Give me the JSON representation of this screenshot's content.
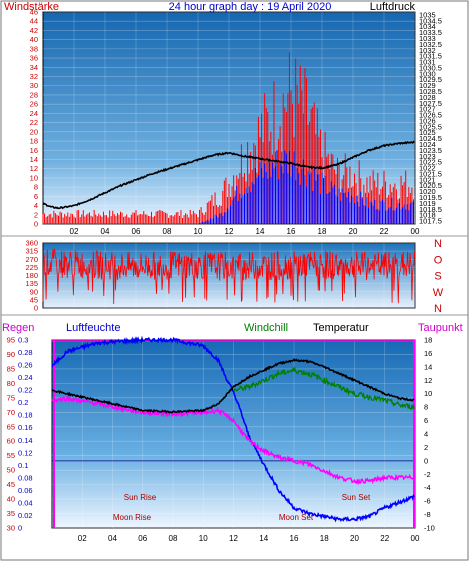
{
  "top": {
    "title": "24 hour graph day : 19 April 2020",
    "left_label": "Windstärke",
    "right_label": "Luftdruck",
    "left_axis": {
      "min": 0,
      "max": 46,
      "ticks": [
        0,
        2,
        4,
        6,
        8,
        10,
        12,
        14,
        16,
        18,
        20,
        22,
        24,
        26,
        28,
        30,
        32,
        34,
        36,
        38,
        40,
        42,
        44,
        46
      ]
    },
    "right_axis": {
      "min": 1017.25,
      "max": 1035.25,
      "ticks": [
        "1017.5",
        "1018",
        "1018.5",
        "1019",
        "1019.5",
        "1020",
        "1020.5",
        "1021",
        "1021.5",
        "1022",
        "1022.5",
        "1023",
        "1023.5",
        "1024",
        "1024.5",
        "1025",
        "1025.5",
        "1026",
        "1026.5",
        "1027",
        "1027.5",
        "1028",
        "1028.5",
        "1029",
        "1029.5",
        "1030",
        "1030.5",
        "1031",
        "1031.5",
        "1032",
        "1032.5",
        "1033",
        "1033.5",
        "1034",
        "1034.5",
        "1035"
      ]
    }
  },
  "mid": {
    "left_axis": {
      "min": 0,
      "max": 360,
      "ticks": [
        0,
        45,
        90,
        135,
        180,
        225,
        270,
        315,
        360
      ]
    },
    "compass": [
      "N",
      "W",
      "S",
      "O",
      "N"
    ]
  },
  "bottom": {
    "label_regen": "Regen",
    "label_luftfeuchte": "Luftfeuchte",
    "label_windchill": "Windchill",
    "label_temperatur": "Temperatur",
    "label_taupunkt": "Taupunkt",
    "humidity_axis": {
      "min": 30,
      "max": 95,
      "ticks": [
        30,
        35,
        40,
        45,
        50,
        55,
        60,
        65,
        70,
        75,
        80,
        85,
        90,
        95
      ]
    },
    "rain_axis": {
      "ticks": [
        "0",
        "0.02",
        "0.04",
        "0.06",
        "0.08",
        "0.1",
        "0.12",
        "0.14",
        "0.16",
        "0.18",
        "0.2",
        "0.22",
        "0.24",
        "0.26",
        "0.28",
        "0.3"
      ]
    },
    "temp_axis": {
      "min": -10,
      "max": 18,
      "ticks": [
        -10,
        -8,
        -6,
        -4,
        -2,
        0,
        2,
        4,
        6,
        8,
        10,
        12,
        14,
        16,
        18
      ]
    },
    "events": {
      "sun_rise": "Sun Rise",
      "sun_set": "Sun Set",
      "moon_rise": "Moon Rise",
      "moon_set": "Moon Set"
    }
  },
  "x_ticks": [
    "02",
    "04",
    "06",
    "08",
    "10",
    "12",
    "14",
    "16",
    "18",
    "20",
    "22",
    "00"
  ],
  "colors": {
    "wind_gust": "#ff0000",
    "wind_avg": "#0000ff",
    "pressure": "#000000",
    "direction": "#ff0000",
    "humidity": "#0000ff",
    "temperature": "#000000",
    "windchill": "#008000",
    "dewpoint": "#ff00ff",
    "panel_top": "#1a6fb8",
    "panel_bottom": "#e9f3ff"
  },
  "chart_data": [
    {
      "type": "line",
      "x_unit": "hour",
      "series": [
        {
          "values_pressure": [
            [
              0,
              1019.0
            ],
            [
              0.5,
              1018.7
            ],
            [
              1,
              1018.6
            ],
            [
              2,
              1018.8
            ],
            [
              3,
              1019.3
            ],
            [
              4,
              1019.9
            ],
            [
              5,
              1020.5
            ],
            [
              6,
              1021.0
            ],
            [
              7,
              1021.5
            ],
            [
              8,
              1021.9
            ],
            [
              9,
              1022.3
            ],
            [
              10,
              1022.7
            ],
            [
              11,
              1023.1
            ],
            [
              12,
              1023.3
            ],
            [
              13,
              1023.0
            ],
            [
              14,
              1022.8
            ],
            [
              15,
              1022.6
            ],
            [
              16,
              1022.4
            ],
            [
              17,
              1022.1
            ],
            [
              18,
              1022.0
            ],
            [
              19,
              1022.3
            ],
            [
              20,
              1022.9
            ],
            [
              21,
              1023.5
            ],
            [
              22,
              1023.9
            ],
            [
              23,
              1024.1
            ],
            [
              24,
              1024.2
            ]
          ]
        },
        {
          "values_gust": [
            [
              0,
              2
            ],
            [
              2,
              2
            ],
            [
              4,
              2
            ],
            [
              6,
              2
            ],
            [
              8,
              2
            ],
            [
              10,
              2
            ],
            [
              11.5,
              6
            ],
            [
              12,
              8
            ],
            [
              13,
              14
            ],
            [
              14,
              18
            ],
            [
              15,
              22
            ],
            [
              16,
              26
            ],
            [
              17,
              22
            ],
            [
              18,
              14
            ],
            [
              19,
              10
            ],
            [
              20,
              10
            ],
            [
              21,
              8
            ],
            [
              22,
              8
            ],
            [
              23,
              8
            ],
            [
              24,
              8
            ]
          ]
        },
        {
          "values_avg": [
            [
              0,
              0
            ],
            [
              2,
              0
            ],
            [
              4,
              0
            ],
            [
              6,
              0
            ],
            [
              8,
              0
            ],
            [
              10,
              0
            ],
            [
              11.5,
              2
            ],
            [
              12,
              4
            ],
            [
              13,
              8
            ],
            [
              14,
              10
            ],
            [
              15,
              12
            ],
            [
              16,
              13
            ],
            [
              17,
              11
            ],
            [
              18,
              8
            ],
            [
              19,
              6
            ],
            [
              20,
              6
            ],
            [
              21,
              4
            ],
            [
              22,
              4
            ],
            [
              23,
              4
            ],
            [
              24,
              4
            ]
          ]
        }
      ]
    },
    {
      "type": "line",
      "x_unit": "hour",
      "series": [
        {
          "values_direction": [
            [
              0,
              250
            ],
            [
              3,
              240
            ],
            [
              6,
              230
            ],
            [
              9,
              240
            ],
            [
              12,
              230
            ],
            [
              15,
              235
            ],
            [
              18,
              240
            ],
            [
              21,
              230
            ],
            [
              24,
              240
            ]
          ]
        }
      ]
    },
    {
      "type": "line",
      "x_unit": "hour",
      "series": [
        {
          "values_humidity": [
            [
              0,
              86
            ],
            [
              1,
              91
            ],
            [
              3,
              94
            ],
            [
              6,
              95
            ],
            [
              8,
              95
            ],
            [
              10,
              93
            ],
            [
              11,
              88
            ],
            [
              11.5,
              82
            ],
            [
              12,
              77
            ],
            [
              12.5,
              70
            ],
            [
              13,
              62
            ],
            [
              14,
              52
            ],
            [
              15,
              43
            ],
            [
              16,
              37
            ],
            [
              17,
              35
            ],
            [
              18,
              34
            ],
            [
              19,
              33
            ],
            [
              20,
              33
            ],
            [
              21,
              34
            ],
            [
              22,
              37
            ],
            [
              23,
              39
            ],
            [
              24,
              41
            ]
          ]
        },
        {
          "values_temperature": [
            [
              0,
              10.5
            ],
            [
              1,
              10
            ],
            [
              3,
              9
            ],
            [
              6,
              7.5
            ],
            [
              8,
              7.3
            ],
            [
              10,
              7.5
            ],
            [
              11,
              8.5
            ],
            [
              12,
              11
            ],
            [
              13,
              12.5
            ],
            [
              14,
              13.5
            ],
            [
              15,
              14.5
            ],
            [
              16,
              15
            ],
            [
              17,
              14.8
            ],
            [
              18,
              14
            ],
            [
              19,
              13
            ],
            [
              20,
              12
            ],
            [
              21,
              11
            ],
            [
              22,
              10
            ],
            [
              23,
              9.3
            ],
            [
              24,
              9
            ]
          ]
        },
        {
          "values_windchill": [
            [
              12,
              10.5
            ],
            [
              13,
              11
            ],
            [
              14,
              12
            ],
            [
              15,
              13
            ],
            [
              16,
              13.5
            ],
            [
              17,
              13
            ],
            [
              18,
              12
            ],
            [
              19,
              11
            ],
            [
              20,
              10
            ],
            [
              21,
              9.5
            ],
            [
              22,
              9
            ],
            [
              23,
              8.3
            ],
            [
              24,
              8
            ]
          ]
        },
        {
          "values_dewpoint": [
            [
              0,
              9
            ],
            [
              1,
              9.3
            ],
            [
              3,
              8.5
            ],
            [
              6,
              7.2
            ],
            [
              8,
              7
            ],
            [
              10,
              7.2
            ],
            [
              11,
              7.5
            ],
            [
              12,
              6
            ],
            [
              13,
              3
            ],
            [
              14,
              1.5
            ],
            [
              15,
              0.5
            ],
            [
              16,
              0
            ],
            [
              17,
              -0.5
            ],
            [
              18,
              -1.5
            ],
            [
              19,
              -2.5
            ],
            [
              20,
              -3
            ],
            [
              21,
              -3
            ],
            [
              22,
              -2.5
            ],
            [
              23,
              -2.5
            ],
            [
              24,
              -2.5
            ]
          ]
        }
      ]
    }
  ]
}
